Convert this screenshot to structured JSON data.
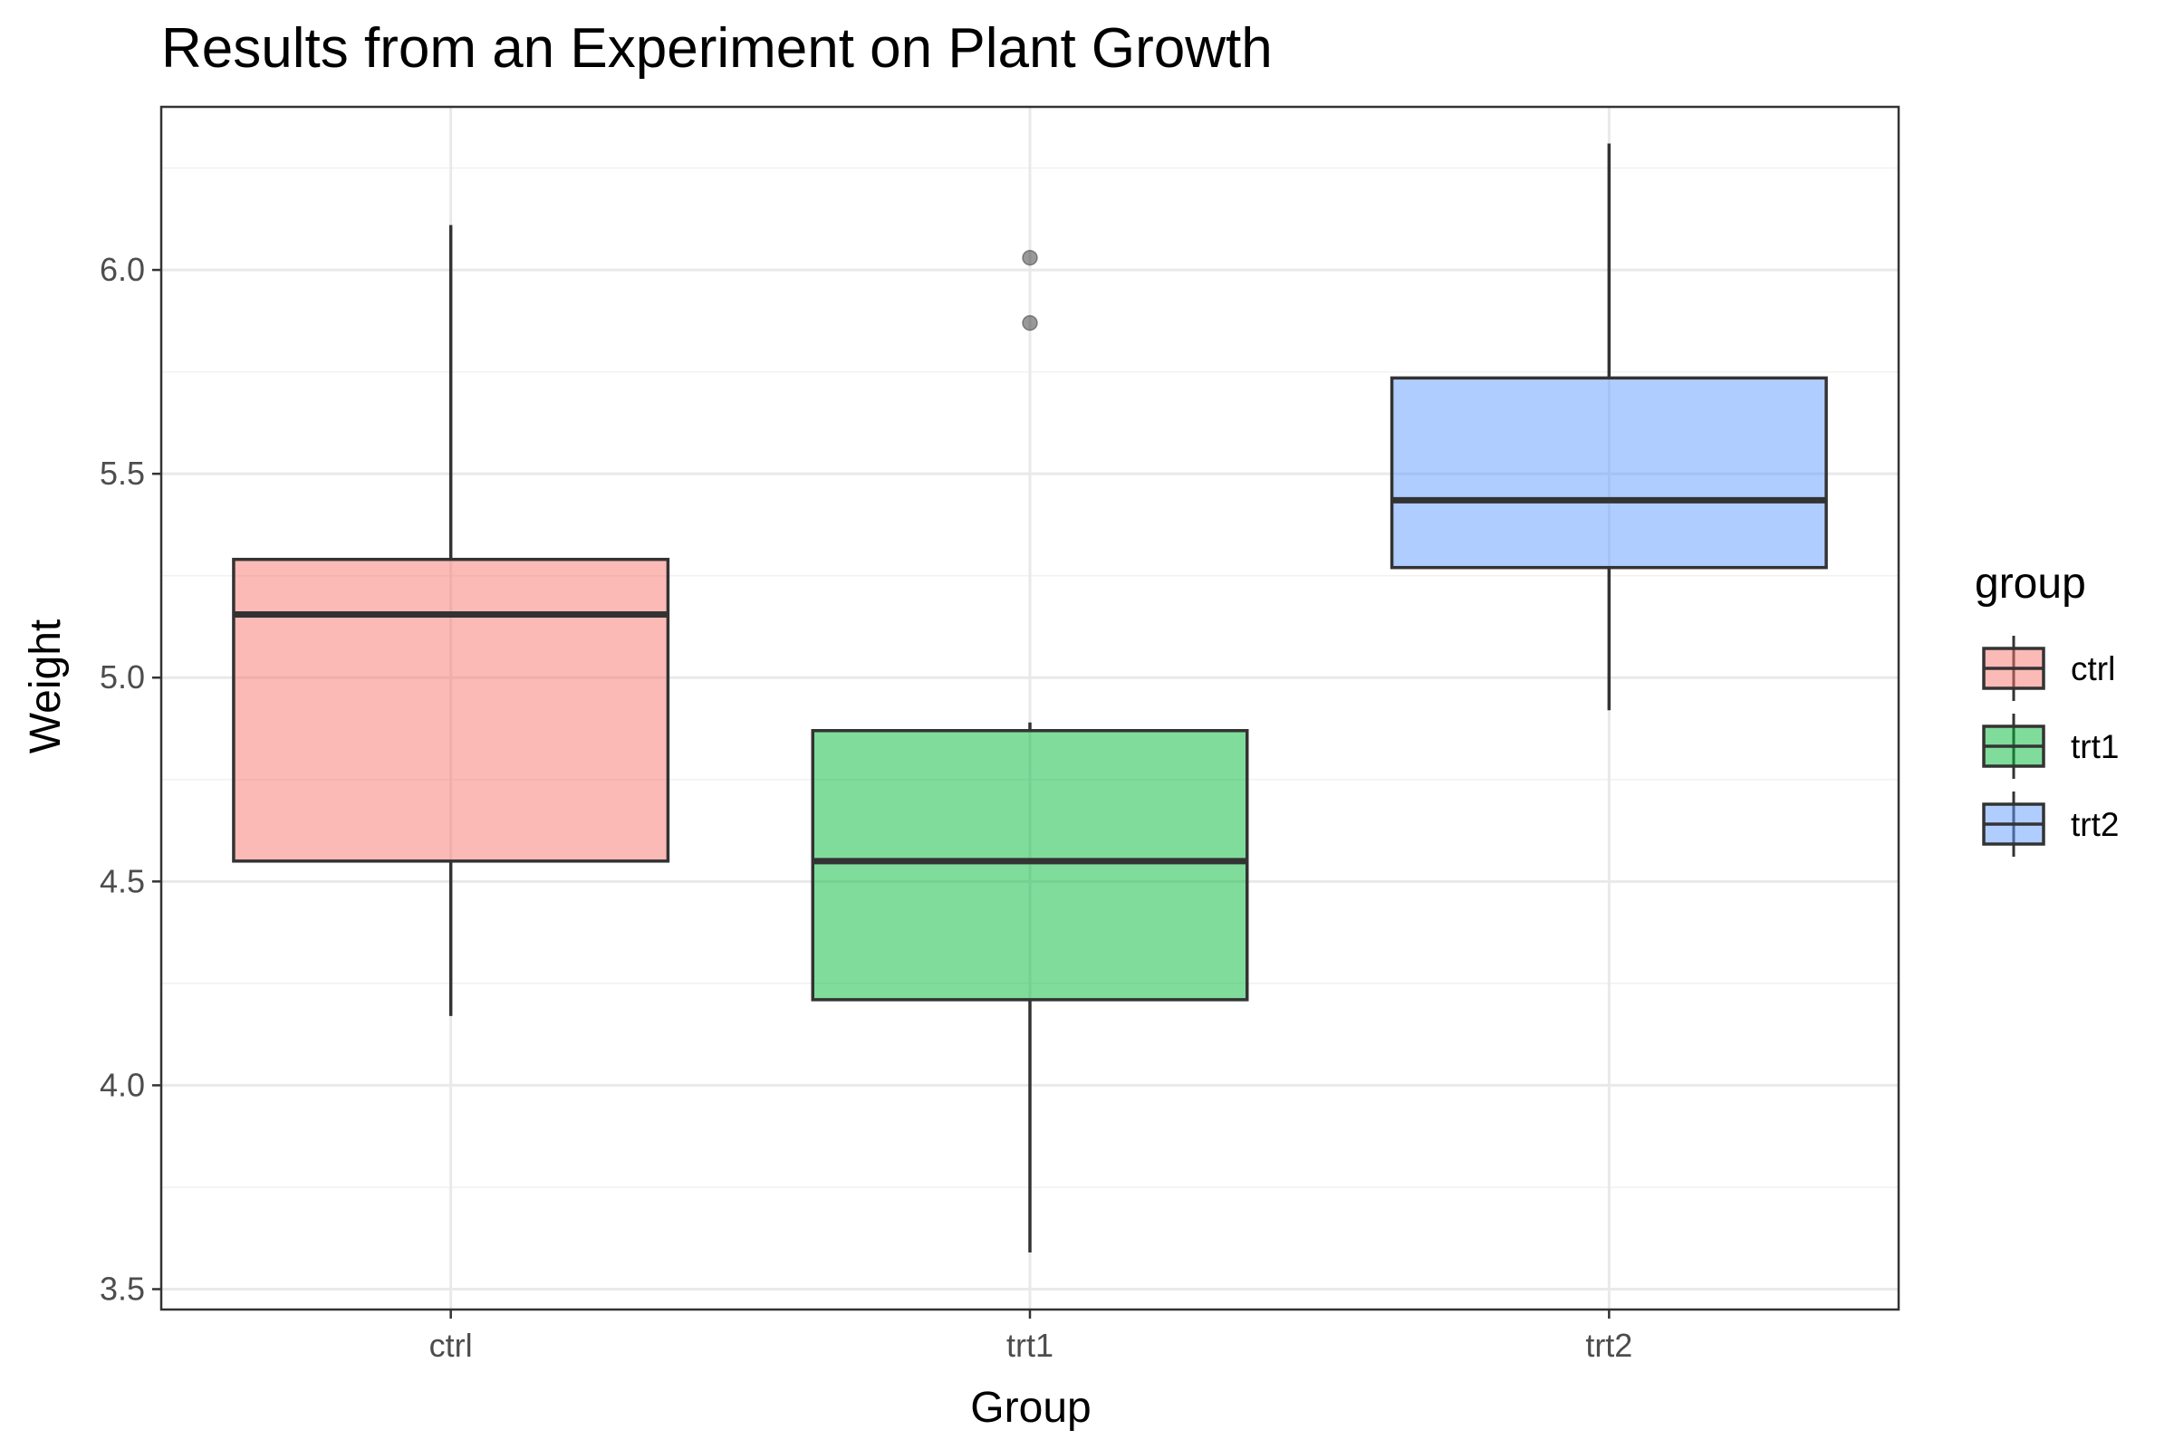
{
  "chart_data": {
    "type": "boxplot",
    "title": "Results from an Experiment on Plant Growth",
    "xlabel": "Group",
    "ylabel": "Weight",
    "ylim": [
      3.45,
      6.4
    ],
    "y_ticks": [
      3.5,
      4.0,
      4.5,
      5.0,
      5.5,
      6.0
    ],
    "y_tick_labels": [
      "3.5",
      "4.0",
      "4.5",
      "5.0",
      "5.5",
      "6.0"
    ],
    "y_minor_ticks": [
      3.75,
      4.25,
      4.75,
      5.25,
      5.75,
      6.25
    ],
    "grid": true,
    "legend": {
      "title": "group",
      "position": "right"
    },
    "categories": [
      "ctrl",
      "trt1",
      "trt2"
    ],
    "series": [
      {
        "name": "ctrl",
        "color": "#f8766d",
        "min": 4.17,
        "q1": 4.55,
        "median": 5.155,
        "q3": 5.29,
        "max": 6.11,
        "outliers": []
      },
      {
        "name": "trt1",
        "color": "#00ba38",
        "min": 3.59,
        "q1": 4.21,
        "median": 4.55,
        "q3": 4.87,
        "max": 4.89,
        "outliers": [
          5.87,
          6.03
        ]
      },
      {
        "name": "trt2",
        "color": "#619cff",
        "min": 4.92,
        "q1": 5.27,
        "median": 5.435,
        "q3": 5.735,
        "max": 6.31,
        "outliers": []
      }
    ]
  }
}
